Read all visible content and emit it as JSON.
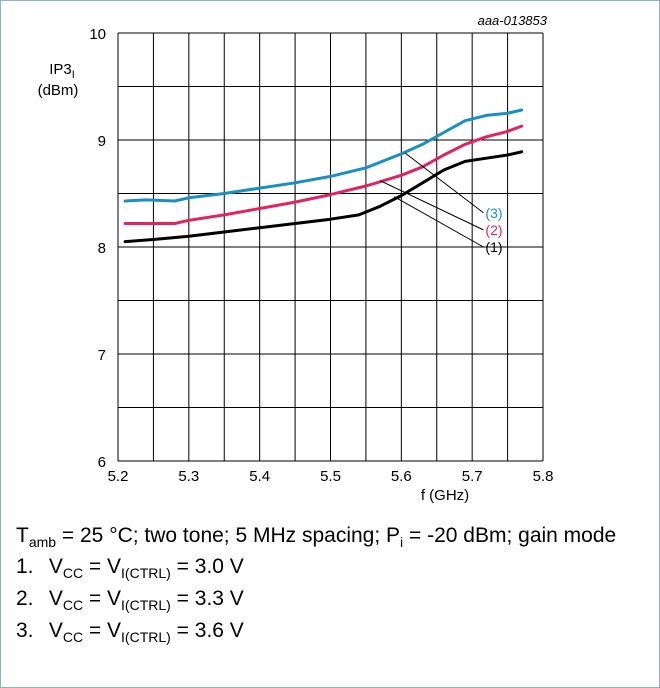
{
  "figure_id": "aaa-013853",
  "chart_data": {
    "type": "line",
    "ylabel_main": "IP3",
    "ylabel_sub": "I",
    "ylabel_unit": "(dBm)",
    "xlabel": "f (GHz)",
    "xlim": [
      5.2,
      5.8
    ],
    "ylim": [
      6,
      10
    ],
    "x_tick_labels": [
      "5.2",
      "5.3",
      "5.4",
      "5.5",
      "5.6",
      "5.7",
      "5.8"
    ],
    "y_tick_labels": [
      "6",
      "7",
      "8",
      "9",
      "10"
    ],
    "grid": true,
    "series": [
      {
        "name": "(1)",
        "color": "#000000",
        "x": [
          5.21,
          5.25,
          5.3,
          5.35,
          5.4,
          5.45,
          5.5,
          5.54,
          5.57,
          5.6,
          5.63,
          5.66,
          5.69,
          5.72,
          5.75,
          5.77
        ],
        "y": [
          8.05,
          8.07,
          8.1,
          8.14,
          8.18,
          8.22,
          8.26,
          8.3,
          8.38,
          8.48,
          8.6,
          8.72,
          8.8,
          8.83,
          8.86,
          8.89
        ]
      },
      {
        "name": "(2)",
        "color": "#e0245e",
        "x": [
          5.21,
          5.24,
          5.28,
          5.3,
          5.35,
          5.4,
          5.45,
          5.5,
          5.55,
          5.6,
          5.63,
          5.66,
          5.69,
          5.72,
          5.75,
          5.77
        ],
        "y": [
          8.22,
          8.22,
          8.22,
          8.25,
          8.3,
          8.36,
          8.42,
          8.49,
          8.57,
          8.67,
          8.75,
          8.86,
          8.96,
          9.03,
          9.08,
          9.13
        ]
      },
      {
        "name": "(3)",
        "color": "#1a8fc3",
        "x": [
          5.21,
          5.24,
          5.28,
          5.3,
          5.35,
          5.4,
          5.45,
          5.5,
          5.55,
          5.6,
          5.63,
          5.66,
          5.69,
          5.72,
          5.75,
          5.77
        ],
        "y": [
          8.43,
          8.44,
          8.43,
          8.46,
          8.5,
          8.55,
          8.6,
          8.66,
          8.74,
          8.87,
          8.96,
          9.07,
          9.18,
          9.23,
          9.25,
          9.28
        ]
      }
    ],
    "annotations": [
      {
        "text": "(3)",
        "color": "#1a8fc3",
        "text_x": 5.73,
        "text_y": 8.32,
        "targets": [
          [
            5.605,
            8.88
          ]
        ]
      },
      {
        "text": "(2)",
        "color": "#e0245e",
        "text_x": 5.73,
        "text_y": 8.16,
        "targets": [
          [
            5.57,
            8.62
          ]
        ]
      },
      {
        "text": "(1)",
        "color": "#000000",
        "text_x": 5.73,
        "text_y": 8.0,
        "targets": [
          [
            5.59,
            8.47
          ]
        ]
      }
    ]
  },
  "caption": {
    "conditions": {
      "t": "T",
      "t_sub": "amb",
      "a": " = 25 °C; two tone; 5 MHz spacing; P",
      "p_sub": "i",
      "b": " = -20 dBm; gain mode"
    },
    "notes": [
      {
        "num": "1.",
        "v": "V",
        "vsub": "CC",
        "eq1": " = V",
        "isub": "I(CTRL)",
        "val": " = 3.0 V"
      },
      {
        "num": "2.",
        "v": "V",
        "vsub": "CC",
        "eq1": " = V",
        "isub": "I(CTRL)",
        "val": " = 3.3 V"
      },
      {
        "num": "3.",
        "v": "V",
        "vsub": "CC",
        "eq1": " = V",
        "isub": "I(CTRL)",
        "val": " = 3.6 V"
      }
    ]
  }
}
